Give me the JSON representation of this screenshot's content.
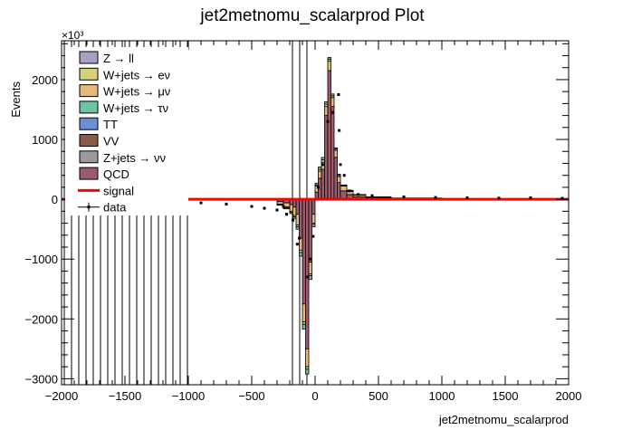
{
  "chart_data": {
    "type": "bar",
    "stacked": true,
    "title": "jet2metnomu_scalarprod Plot",
    "xlabel": "jet2metnomu_scalarprod",
    "ylabel": "Events",
    "y_multiplier": "×10³",
    "xlim": [
      -2000,
      2000
    ],
    "ylim": [
      -3100,
      2650
    ],
    "y_unit_scale": 1000,
    "x_ticks": [
      -2000,
      -1500,
      -1000,
      -500,
      0,
      500,
      1000,
      1500,
      2000
    ],
    "x_tick_labels": [
      "−2000",
      "−1500",
      "−1000",
      "−500",
      "0",
      "500",
      "1000",
      "1500",
      "2000"
    ],
    "y_ticks": [
      -3000,
      -2000,
      -1000,
      0,
      1000,
      2000
    ],
    "y_tick_labels": [
      "−3000",
      "−2000",
      "−1000",
      "0",
      "1000",
      "2000"
    ],
    "grid": false,
    "legend_position": "top-left",
    "legend": [
      {
        "name": "Z → ll",
        "color": "#a89fc5",
        "kind": "fill"
      },
      {
        "name": "W+jets → eν",
        "color": "#d4d07c",
        "kind": "fill"
      },
      {
        "name": "W+jets → μν",
        "color": "#e6b87a",
        "kind": "fill"
      },
      {
        "name": "W+jets → τν",
        "color": "#6cc4a0",
        "kind": "fill"
      },
      {
        "name": "TT",
        "color": "#6f8fd4",
        "kind": "fill"
      },
      {
        "name": "VV",
        "color": "#8a5a48",
        "kind": "fill"
      },
      {
        "name": "Z+jets → νν",
        "color": "#9a9a9a",
        "kind": "fill"
      },
      {
        "name": "QCD",
        "color": "#9c5a6a",
        "kind": "fill"
      },
      {
        "name": "signal",
        "color": "#ff0000",
        "kind": "line"
      },
      {
        "name": "data",
        "color": "#000000",
        "kind": "marker"
      }
    ],
    "bins": [
      {
        "x0": -300,
        "x1": -250,
        "qcd": -40,
        "wmu": -40,
        "we": -10,
        "wtau": -10
      },
      {
        "x0": -250,
        "x1": -200,
        "qcd": -60,
        "wmu": -70,
        "we": -15,
        "wtau": -15
      },
      {
        "x0": -200,
        "x1": -175,
        "qcd": -90,
        "wmu": -110,
        "we": -20,
        "wtau": -20
      },
      {
        "x0": -175,
        "x1": -150,
        "qcd": -130,
        "wmu": -140,
        "we": -25,
        "wtau": -25
      },
      {
        "x0": -150,
        "x1": -125,
        "qcd": -250,
        "wmu": -180,
        "we": -30,
        "wtau": -40
      },
      {
        "x0": -125,
        "x1": -100,
        "qcd": -650,
        "wmu": -200,
        "we": -40,
        "wtau": -60
      },
      {
        "x0": -100,
        "x1": -75,
        "qcd": -1750,
        "wmu": -300,
        "we": -40,
        "wtau": -80
      },
      {
        "x0": -75,
        "x1": -50,
        "qcd": -2500,
        "wmu": -300,
        "we": -40,
        "wtau": -80
      },
      {
        "x0": -50,
        "x1": -25,
        "qcd": -1050,
        "wmu": -200,
        "we": -30,
        "wtau": -60
      },
      {
        "x0": -25,
        "x1": 0,
        "qcd": -250,
        "wmu": -150,
        "we": -20,
        "wtau": -40
      },
      {
        "x0": 0,
        "x1": 25,
        "qcd": 120,
        "wmu": 100,
        "we": 20,
        "wtau": 30
      },
      {
        "x0": 25,
        "x1": 50,
        "qcd": 350,
        "wmu": 120,
        "we": 30,
        "wtau": 40
      },
      {
        "x0": 50,
        "x1": 75,
        "qcd": 500,
        "wmu": 120,
        "we": 40,
        "wtau": 40
      },
      {
        "x0": 75,
        "x1": 100,
        "qcd": 1400,
        "wmu": 150,
        "we": 40,
        "wtau": 40
      },
      {
        "x0": 100,
        "x1": 125,
        "qcd": 2150,
        "wmu": 160,
        "we": 30,
        "wtau": 30
      },
      {
        "x0": 125,
        "x1": 150,
        "qcd": 1550,
        "wmu": 150,
        "we": 30,
        "wtau": 30
      },
      {
        "x0": 150,
        "x1": 175,
        "qcd": 700,
        "wmu": 120,
        "we": 20,
        "wtau": 20
      },
      {
        "x0": 175,
        "x1": 200,
        "qcd": 280,
        "wmu": 100,
        "we": 20,
        "wtau": 20
      },
      {
        "x0": 200,
        "x1": 250,
        "qcd": 140,
        "wmu": 80,
        "we": 10,
        "wtau": 10
      },
      {
        "x0": 250,
        "x1": 300,
        "qcd": 80,
        "wmu": 50,
        "we": 10,
        "wtau": 10
      },
      {
        "x0": 300,
        "x1": 400,
        "qcd": 40,
        "wmu": 30,
        "we": 5,
        "wtau": 5
      },
      {
        "x0": 400,
        "x1": 600,
        "qcd": 20,
        "wmu": 15,
        "we": 3,
        "wtau": 2
      },
      {
        "x0": 600,
        "x1": 1000,
        "qcd": 10,
        "wmu": 8,
        "we": 2,
        "wtau": 1
      },
      {
        "x0": 1000,
        "x1": 2000,
        "qcd": 5,
        "wmu": 4,
        "we": 1,
        "wtau": 1
      }
    ],
    "data_points": [
      {
        "x": -900,
        "y": -60
      },
      {
        "x": -700,
        "y": -80
      },
      {
        "x": -500,
        "y": -120
      },
      {
        "x": -400,
        "y": -150
      },
      {
        "x": -300,
        "y": -180
      },
      {
        "x": -250,
        "y": -120
      },
      {
        "x": -225,
        "y": -250
      },
      {
        "x": -175,
        "y": -350
      },
      {
        "x": -125,
        "y": -650
      },
      {
        "x": -140,
        "y": -750
      },
      {
        "x": -60,
        "y": -1300
      },
      {
        "x": -40,
        "y": -1000
      },
      {
        "x": -15,
        "y": -620
      },
      {
        "x": 25,
        "y": 200
      },
      {
        "x": 60,
        "y": 580
      },
      {
        "x": 100,
        "y": 1300
      },
      {
        "x": 140,
        "y": 1450
      },
      {
        "x": 185,
        "y": 1750
      },
      {
        "x": 190,
        "y": 1150
      },
      {
        "x": 200,
        "y": 580
      },
      {
        "x": 230,
        "y": 400
      },
      {
        "x": 270,
        "y": 140
      },
      {
        "x": 340,
        "y": 80
      },
      {
        "x": 450,
        "y": 60
      },
      {
        "x": 700,
        "y": 40
      },
      {
        "x": 950,
        "y": 30
      },
      {
        "x": 1200,
        "y": 25
      },
      {
        "x": 1450,
        "y": 20
      },
      {
        "x": 1700,
        "y": 25
      },
      {
        "x": 1950,
        "y": 15
      }
    ],
    "signal": [
      {
        "x": -2000,
        "y": 0
      },
      {
        "x": 0,
        "y": 0
      },
      {
        "x": 2000,
        "y": 0
      }
    ],
    "hatched_region": [
      -2000,
      -1000
    ]
  }
}
